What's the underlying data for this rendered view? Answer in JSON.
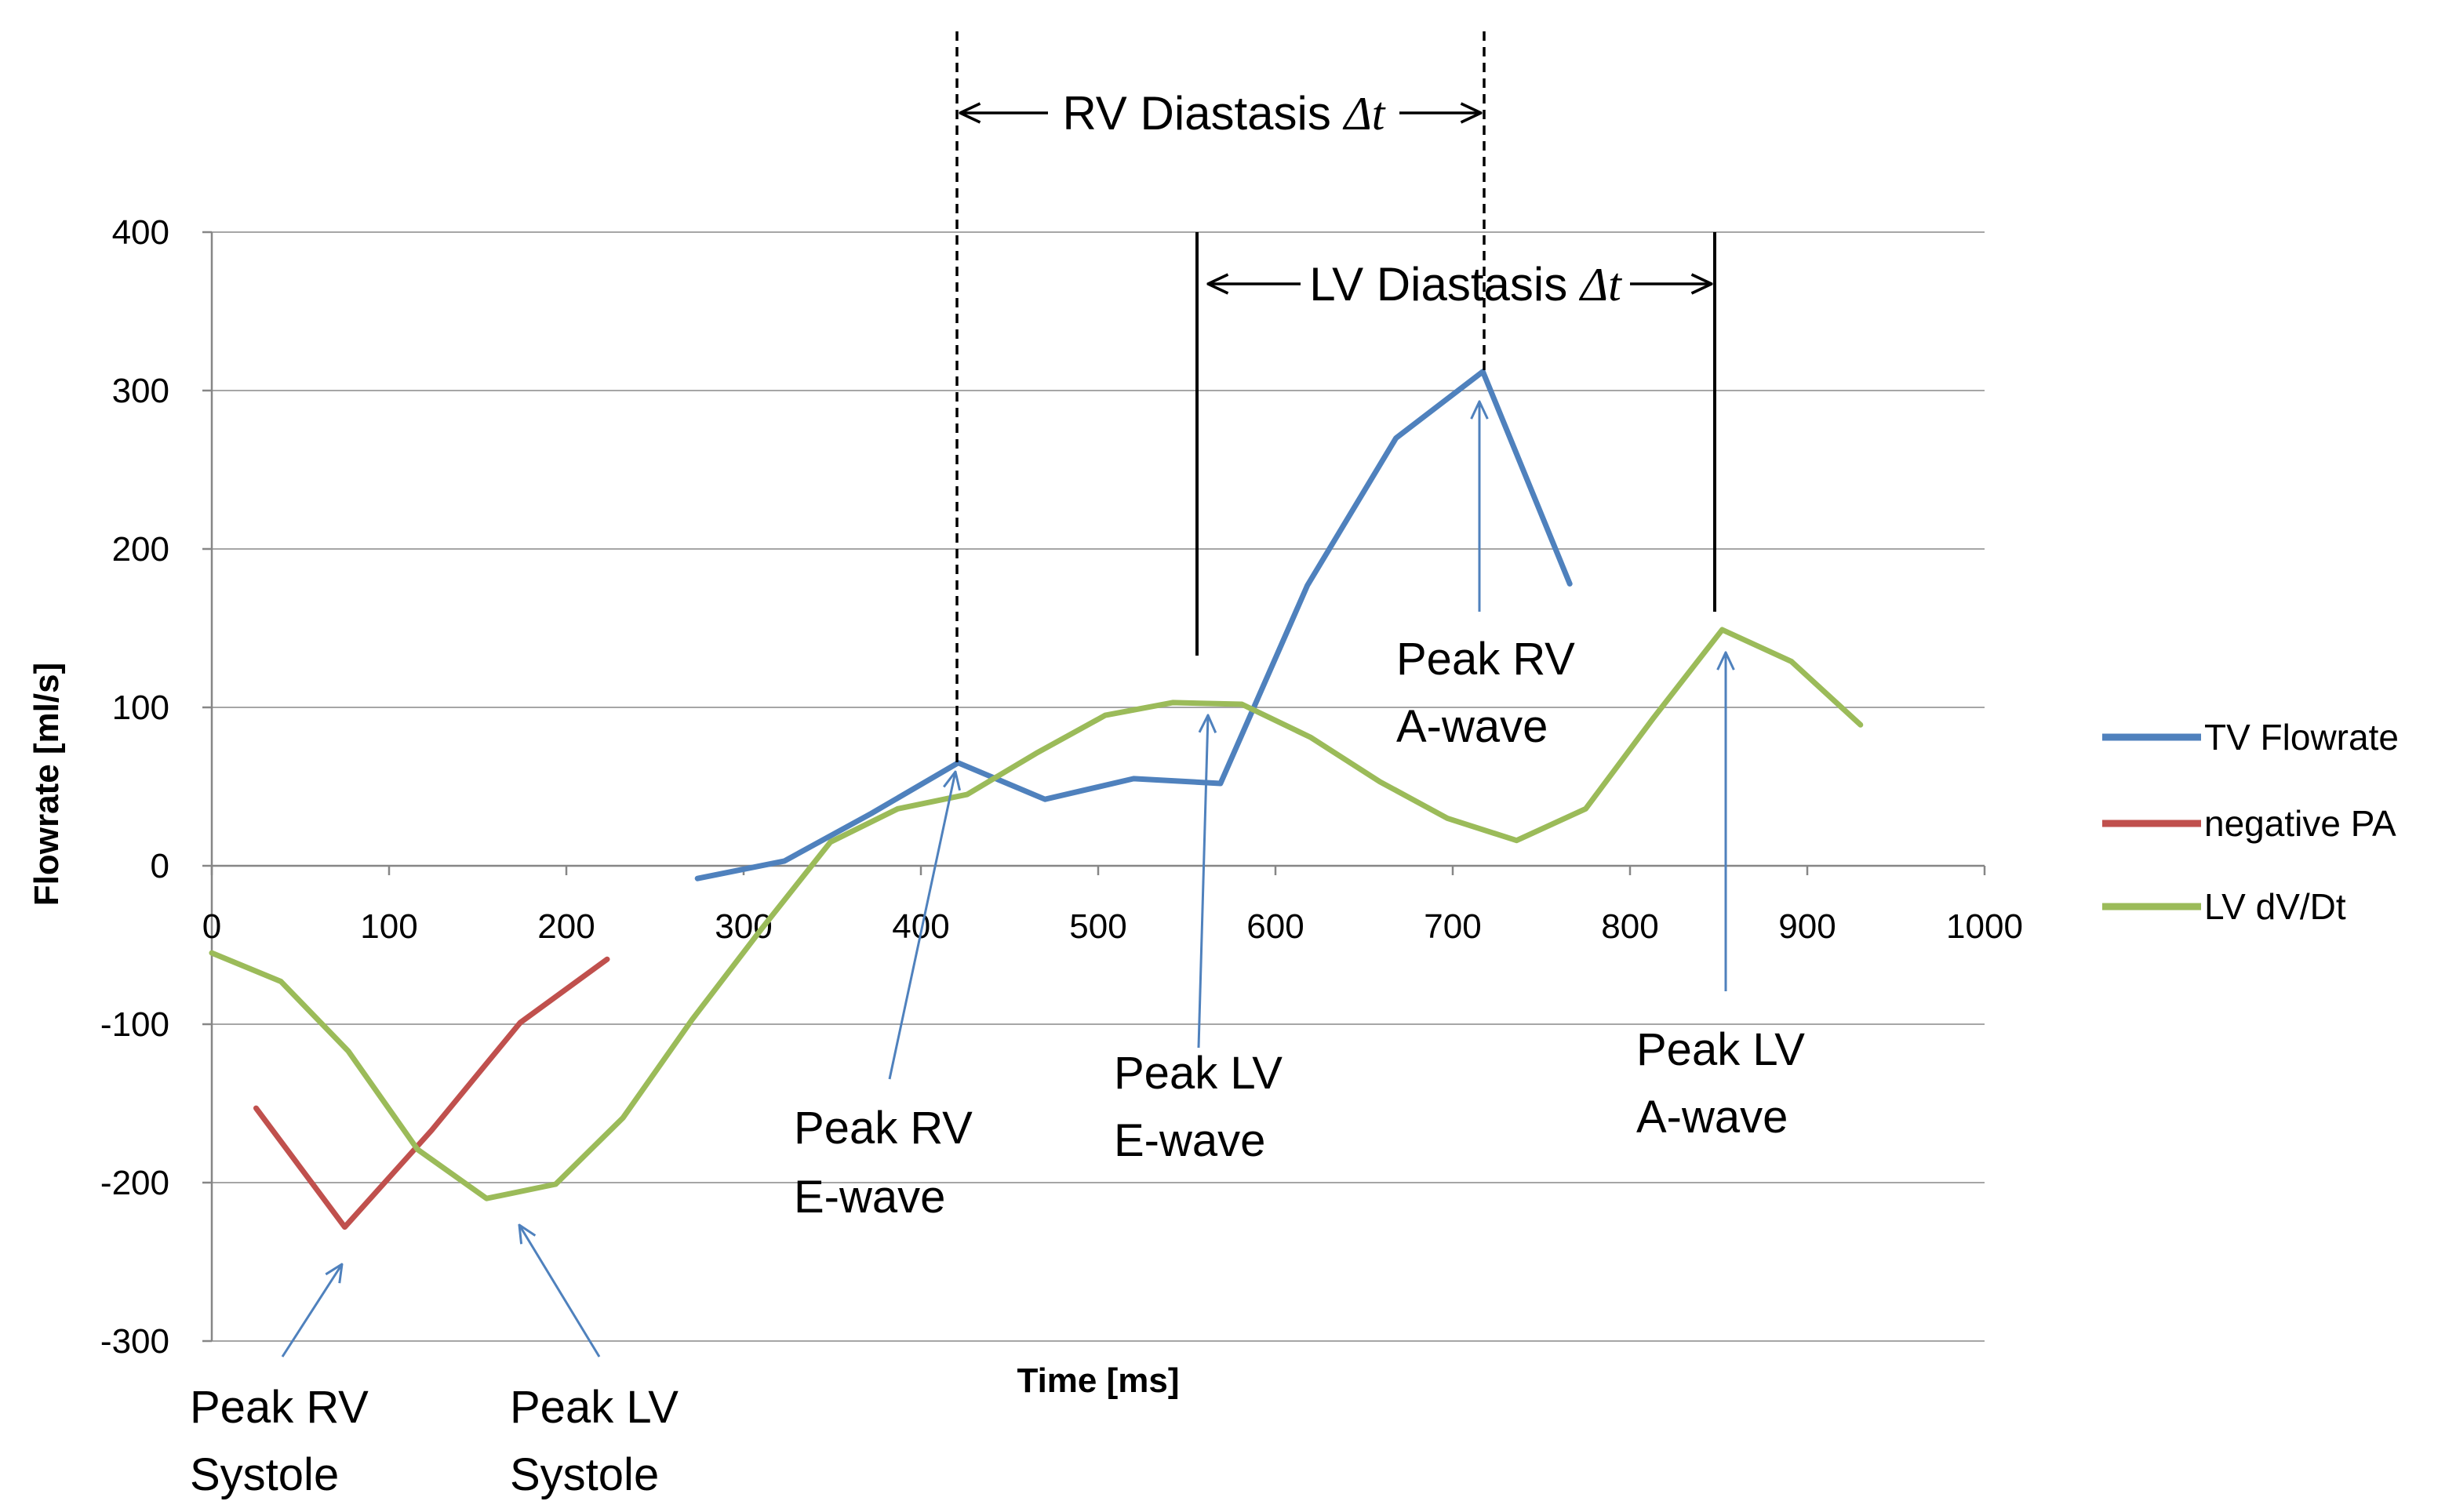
{
  "chart_data": {
    "type": "line",
    "title": "",
    "xlabel": "Time [ms]",
    "ylabel": "Flowrate [ml/s]",
    "xlim": [
      0,
      1000
    ],
    "ylim": [
      -300,
      400
    ],
    "grid": true,
    "legend_position": "right",
    "x_ticks": [
      "0",
      "100",
      "200",
      "300",
      "400",
      "500",
      "600",
      "700",
      "800",
      "900",
      "1000"
    ],
    "y_ticks": [
      "400",
      "300",
      "200",
      "100",
      "0",
      "-100",
      "-200",
      "-300"
    ],
    "series": [
      {
        "name": "TV Flowrate",
        "color": "#4f81bd",
        "x": [
          274,
          323,
          372,
          421,
          470,
          520,
          569,
          618,
          668,
          717,
          766
        ],
        "y": [
          -8,
          3,
          33,
          65,
          42,
          55,
          52,
          177,
          270,
          312,
          178
        ]
      },
      {
        "name": "negative PA",
        "color": "#c0504d",
        "x": [
          25,
          75,
          124,
          174,
          223
        ],
        "y": [
          -153,
          -228,
          -167,
          -99,
          -59
        ]
      },
      {
        "name": "LV dV/Dt",
        "color": "#9bbb59",
        "x": [
          0,
          39,
          77,
          116,
          155,
          194,
          232,
          271,
          310,
          349,
          387,
          426,
          465,
          504,
          542,
          581,
          620,
          659,
          697,
          736,
          775,
          813,
          852,
          891,
          930
        ],
        "y": [
          -55,
          -73,
          -117,
          -179,
          -210,
          -201,
          -159,
          -97,
          -40,
          15,
          36,
          45,
          71,
          95,
          103,
          102,
          81,
          53,
          30,
          16,
          36,
          93,
          149,
          129,
          89
        ]
      }
    ],
    "annotation_arrow_color": "#4f81bd",
    "annotations": {
      "rv_diastasis": {
        "label": "RV Diastasis",
        "symbol": "Δt"
      },
      "lv_diastasis": {
        "label": "LV Diastasis",
        "symbol": "Δt"
      },
      "peak_rv_systole": {
        "line1": "Peak RV",
        "line2": "Systole"
      },
      "peak_lv_systole": {
        "line1": "Peak LV",
        "line2": "Systole"
      },
      "peak_rv_e_wave": {
        "line1": "Peak RV",
        "line2": "E-wave"
      },
      "peak_lv_e_wave": {
        "line1": "Peak LV",
        "line2": "E-wave"
      },
      "peak_rv_a_wave": {
        "line1": "Peak RV",
        "line2": "A-wave"
      },
      "peak_lv_a_wave": {
        "line1": "Peak LV",
        "line2": "A-wave"
      }
    }
  }
}
